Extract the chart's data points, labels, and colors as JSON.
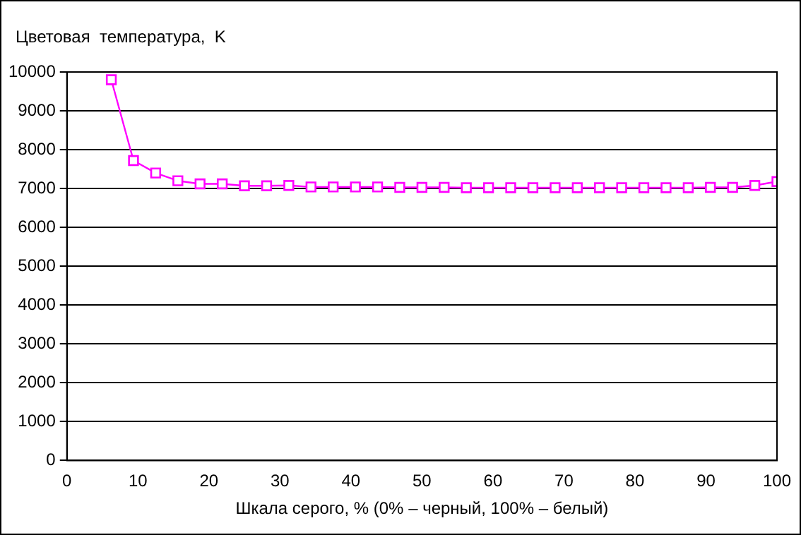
{
  "chart_data": {
    "type": "line",
    "ylabel": "Цветовая  температура,  K",
    "xlabel": "Шкала серого, % (0% – черный, 100% – белый)",
    "x": [
      6.25,
      9.375,
      12.5,
      15.625,
      18.75,
      21.875,
      25,
      28.125,
      31.25,
      34.375,
      37.5,
      40.625,
      43.75,
      46.875,
      50,
      53.125,
      56.25,
      59.375,
      62.5,
      65.625,
      68.75,
      71.875,
      75,
      78.125,
      81.25,
      84.375,
      87.5,
      90.625,
      93.75,
      96.875,
      100
    ],
    "series": [
      {
        "color": "#ff00ff",
        "values": [
          9800,
          7720,
          7400,
          7200,
          7120,
          7120,
          7070,
          7070,
          7080,
          7040,
          7040,
          7040,
          7040,
          7030,
          7030,
          7030,
          7020,
          7020,
          7020,
          7020,
          7020,
          7020,
          7020,
          7020,
          7020,
          7020,
          7020,
          7030,
          7030,
          7080,
          7180
        ]
      }
    ],
    "xlim": [
      0,
      100
    ],
    "xticks": [
      0,
      10,
      20,
      30,
      40,
      50,
      60,
      70,
      80,
      90,
      100
    ],
    "ylim": [
      0,
      10000
    ],
    "yticks": [
      0,
      1000,
      2000,
      3000,
      4000,
      5000,
      6000,
      7000,
      8000,
      9000,
      10000
    ],
    "grid": "y",
    "legend": false,
    "marker": "square",
    "line_style": "solid"
  }
}
